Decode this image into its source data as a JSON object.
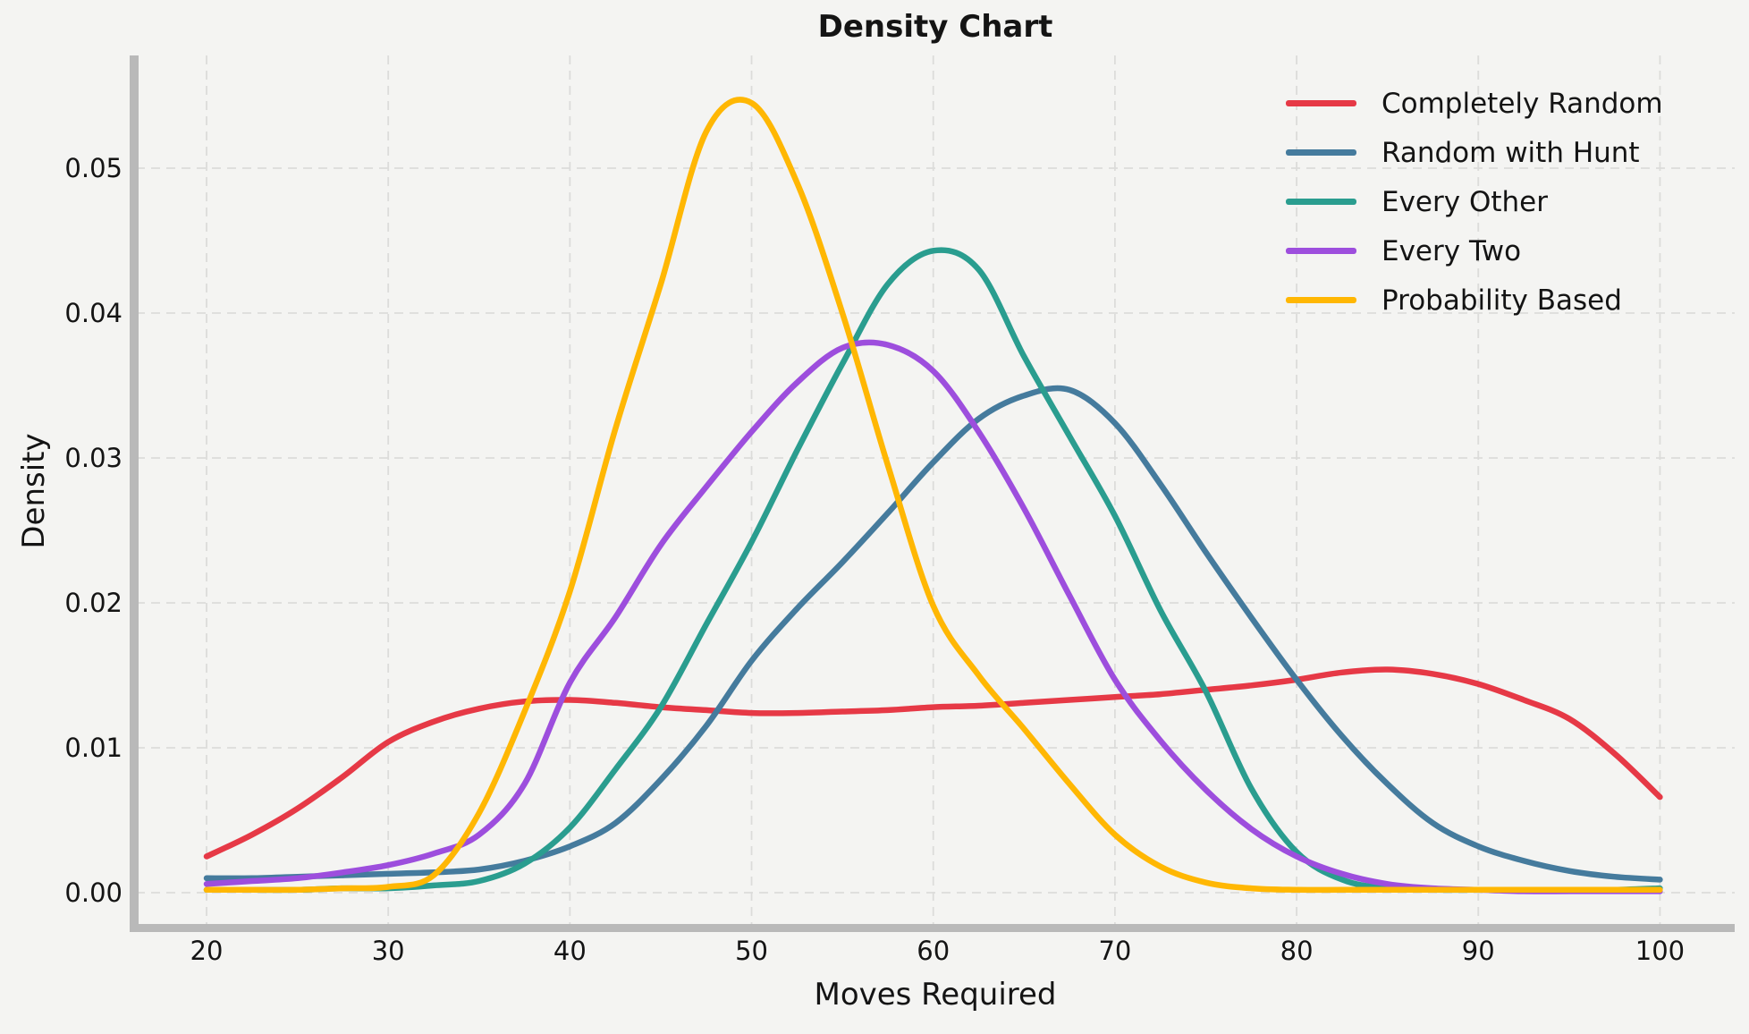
{
  "chart_data": {
    "type": "line",
    "subtype": "density-kde",
    "title": "Density Chart",
    "xlabel": "Moves Required",
    "ylabel": "Density",
    "x_ticks": [
      20,
      30,
      40,
      50,
      60,
      70,
      80,
      90,
      100
    ],
    "y_ticks": [
      {
        "value": 0.0,
        "label": "0.00"
      },
      {
        "value": 0.01,
        "label": "0.01"
      },
      {
        "value": 0.02,
        "label": "0.02"
      },
      {
        "value": 0.03,
        "label": "0.03"
      },
      {
        "value": 0.04,
        "label": "0.04"
      },
      {
        "value": 0.05,
        "label": "0.05"
      }
    ],
    "xlim": [
      16,
      104
    ],
    "ylim": [
      -0.0023,
      0.0578
    ],
    "grid": true,
    "grid_style": "dashed",
    "legend_position": "upper right",
    "colors": {
      "background": "#f4f4f2",
      "grid": "#dcdcda",
      "spine": "#b9b9b9",
      "text": "#141414"
    },
    "series": [
      {
        "name": "Completely Random",
        "color": "#e63946",
        "x": [
          20,
          22.5,
          25,
          27.5,
          30,
          32.5,
          35,
          37.5,
          40,
          42.5,
          45,
          47.5,
          50,
          52.5,
          55,
          57.5,
          60,
          62.5,
          65,
          67.5,
          70,
          72.5,
          75,
          77.5,
          80,
          82.5,
          85,
          87.5,
          90,
          92.5,
          95,
          97.5,
          100
        ],
        "y": [
          0.0025,
          0.004,
          0.0058,
          0.008,
          0.0104,
          0.0118,
          0.0127,
          0.0132,
          0.0133,
          0.0131,
          0.0128,
          0.0126,
          0.0124,
          0.0124,
          0.0125,
          0.0126,
          0.0128,
          0.0129,
          0.0131,
          0.0133,
          0.0135,
          0.0137,
          0.014,
          0.0143,
          0.0147,
          0.0152,
          0.0154,
          0.0151,
          0.0144,
          0.0133,
          0.012,
          0.0096,
          0.0066
        ]
      },
      {
        "name": "Random with Hunt",
        "color": "#457b9d",
        "x": [
          20,
          22.5,
          25,
          27.5,
          30,
          32.5,
          35,
          37.5,
          40,
          42.5,
          45,
          47.5,
          50,
          52.5,
          55,
          57.5,
          60,
          62.5,
          65,
          67.5,
          70,
          72.5,
          75,
          77.5,
          80,
          82.5,
          85,
          87.5,
          90,
          92.5,
          95,
          97.5,
          100
        ],
        "y": [
          0.001,
          0.001,
          0.0011,
          0.0012,
          0.0013,
          0.0014,
          0.0016,
          0.0022,
          0.0032,
          0.0048,
          0.0078,
          0.0115,
          0.016,
          0.0196,
          0.0228,
          0.0262,
          0.0297,
          0.0327,
          0.0343,
          0.0347,
          0.0324,
          0.0282,
          0.0235,
          0.019,
          0.0147,
          0.0108,
          0.0075,
          0.0048,
          0.0032,
          0.0022,
          0.0015,
          0.0011,
          0.0009
        ]
      },
      {
        "name": "Every Other",
        "color": "#2a9d8f",
        "x": [
          20,
          22.5,
          25,
          27.5,
          30,
          32.5,
          35,
          37.5,
          40,
          42.5,
          45,
          47.5,
          50,
          52.5,
          55,
          57.5,
          60,
          62.5,
          65,
          67.5,
          70,
          72.5,
          75,
          77.5,
          80,
          82.5,
          85,
          87.5,
          90,
          92.5,
          95,
          97.5,
          100
        ],
        "y": [
          0.0002,
          0.0002,
          0.0002,
          0.0003,
          0.0003,
          0.0005,
          0.0008,
          0.002,
          0.0045,
          0.0085,
          0.0128,
          0.0185,
          0.0242,
          0.0305,
          0.0365,
          0.042,
          0.0443,
          0.043,
          0.037,
          0.0315,
          0.026,
          0.0195,
          0.0139,
          0.0072,
          0.0028,
          0.0009,
          0.0003,
          0.0002,
          0.0002,
          0.0002,
          0.0002,
          0.0002,
          0.0003
        ]
      },
      {
        "name": "Every Two",
        "color": "#9d4edd",
        "x": [
          20,
          22.5,
          25,
          27.5,
          30,
          32.5,
          35,
          37.5,
          40,
          42.5,
          45,
          47.5,
          50,
          52.5,
          55,
          57.5,
          60,
          62.5,
          65,
          67.5,
          70,
          72.5,
          75,
          77.5,
          80,
          82.5,
          85,
          87.5,
          90,
          92.5,
          95,
          97.5,
          100
        ],
        "y": [
          0.0006,
          0.0008,
          0.001,
          0.0014,
          0.0019,
          0.0027,
          0.004,
          0.0075,
          0.0145,
          0.019,
          0.024,
          0.028,
          0.0318,
          0.0352,
          0.0376,
          0.0378,
          0.036,
          0.0318,
          0.0265,
          0.0205,
          0.0147,
          0.0105,
          0.0071,
          0.0044,
          0.0025,
          0.0013,
          0.0006,
          0.0003,
          0.0002,
          0.0001,
          0.0001,
          0.0001,
          0.0001
        ]
      },
      {
        "name": "Probability Based",
        "color": "#ffb703",
        "x": [
          20,
          22.5,
          25,
          27.5,
          30,
          32.5,
          35,
          37.5,
          40,
          42.5,
          45,
          47.5,
          50,
          52.5,
          55,
          57.5,
          60,
          62.5,
          65,
          67.5,
          70,
          72.5,
          75,
          77.5,
          80,
          82.5,
          85,
          87.5,
          90,
          92.5,
          95,
          97.5,
          100
        ],
        "y": [
          0.0002,
          0.0002,
          0.0002,
          0.0003,
          0.0004,
          0.0012,
          0.0055,
          0.0125,
          0.0208,
          0.032,
          0.042,
          0.0525,
          0.0545,
          0.049,
          0.04,
          0.0295,
          0.0198,
          0.015,
          0.0113,
          0.0075,
          0.004,
          0.0018,
          0.0007,
          0.0003,
          0.0002,
          0.0002,
          0.0002,
          0.0002,
          0.0002,
          0.0002,
          0.0002,
          0.0002,
          0.0002
        ]
      }
    ]
  }
}
